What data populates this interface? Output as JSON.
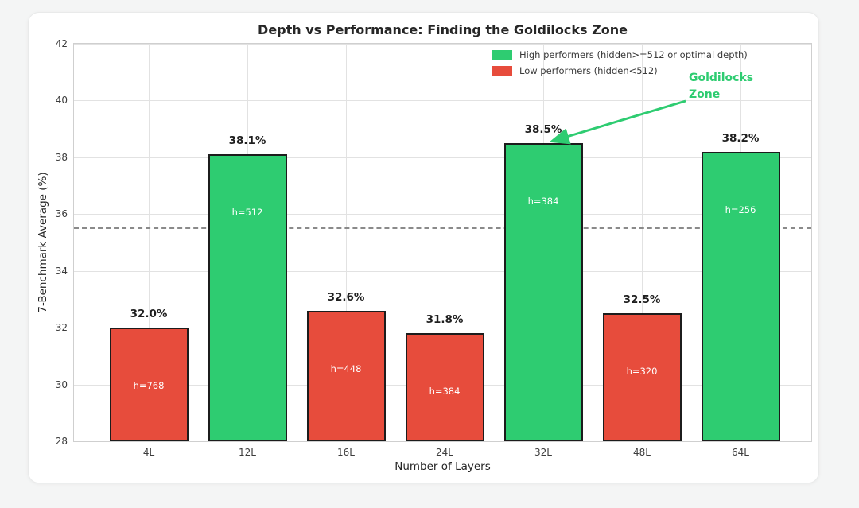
{
  "chart_data": {
    "type": "bar",
    "title": "Depth vs Performance: Finding the Goldilocks Zone",
    "xlabel": "Number of Layers",
    "ylabel": "7-Benchmark Average (%)",
    "ylim": [
      28,
      42
    ],
    "yticks": [
      28,
      30,
      32,
      34,
      36,
      38,
      40,
      42
    ],
    "grid": true,
    "categories": [
      "4L",
      "12L",
      "16L",
      "24L",
      "32L",
      "48L",
      "64L"
    ],
    "values": [
      32.0,
      38.1,
      32.6,
      31.8,
      38.5,
      32.5,
      38.2
    ],
    "value_labels": [
      "32.0%",
      "38.1%",
      "32.6%",
      "31.8%",
      "38.5%",
      "32.5%",
      "38.2%"
    ],
    "bar_annotations": [
      "h=768",
      "h=512",
      "h=448",
      "h=384",
      "h=384",
      "h=320",
      "h=256"
    ],
    "bar_groups": [
      "low",
      "high",
      "low",
      "low",
      "high",
      "low",
      "high"
    ],
    "colors": {
      "high": "#2ecc71",
      "low": "#e74c3c"
    },
    "threshold": 35.5,
    "legend_position": "upper right",
    "legend": [
      {
        "label": "High performers (hidden>=512 or optimal depth)",
        "color": "#2ecc71"
      },
      {
        "label": "Low performers (hidden<512)",
        "color": "#e74c3c"
      }
    ],
    "annotation": {
      "text": "Goldilocks Zone",
      "color": "#2ecc71",
      "target_category": "32L"
    }
  }
}
